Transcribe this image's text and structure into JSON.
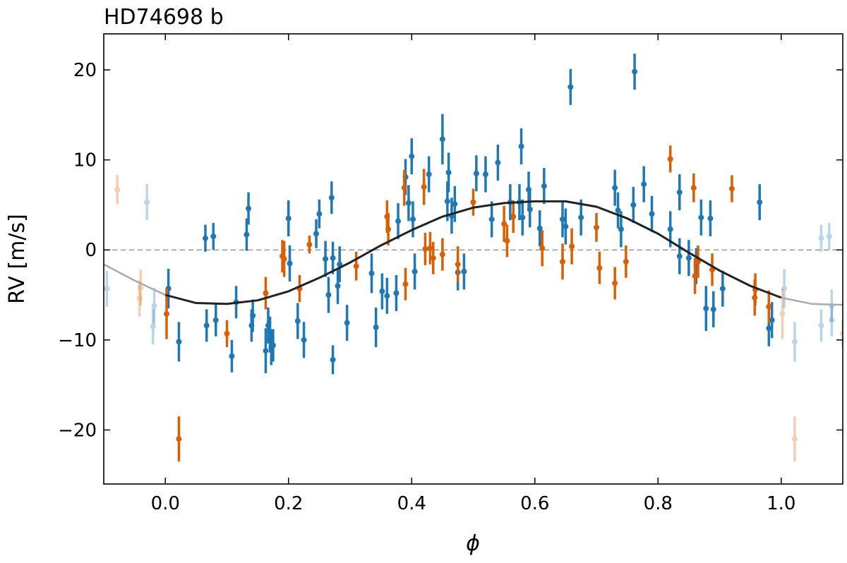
{
  "chart_data": {
    "type": "scatter",
    "title": "HD74698 b",
    "xlabel": "ϕ",
    "ylabel": "RV [m/s]",
    "xlim": [
      -0.1,
      1.1
    ],
    "ylim": [
      -26,
      24
    ],
    "x_ticks": [
      0.0,
      0.2,
      0.4,
      0.6,
      0.8,
      1.0
    ],
    "x_tick_labels": [
      "0.0",
      "0.2",
      "0.4",
      "0.6",
      "0.8",
      "1.0"
    ],
    "y_ticks": [
      20,
      10,
      0,
      -10,
      -20
    ],
    "y_tick_labels": [
      "20",
      "10",
      "0",
      "−10",
      "−20"
    ],
    "grid": false,
    "reference_line": {
      "y": 0,
      "style": "dashed",
      "color": "#999999"
    },
    "model_curve": {
      "x": [
        -0.1,
        -0.05,
        0.0,
        0.05,
        0.1,
        0.15,
        0.2,
        0.25,
        0.3,
        0.35,
        0.4,
        0.45,
        0.5,
        0.55,
        0.6,
        0.65,
        0.7,
        0.75,
        0.8,
        0.85,
        0.9,
        0.95,
        1.0,
        1.05,
        1.1
      ],
      "y": [
        -1.6,
        -3.4,
        -5.0,
        -5.9,
        -6.0,
        -5.6,
        -4.6,
        -3.1,
        -1.4,
        0.5,
        2.2,
        3.7,
        4.7,
        5.2,
        5.4,
        5.4,
        4.8,
        3.5,
        1.8,
        -0.3,
        -2.3,
        -4.0,
        -5.3,
        -6.0,
        -6.1
      ],
      "color": "#222222",
      "faded_color": "#aaaaaa",
      "main_range": [
        0.0,
        1.0
      ]
    },
    "faded_range": [
      0.0,
      1.0
    ],
    "series": [
      {
        "color": "#1f77b4",
        "points": [
          {
            "x": -0.095,
            "y": -4.3,
            "e": 2.0
          },
          {
            "x": -0.03,
            "y": 5.3,
            "e": 2.0
          },
          {
            "x": -0.02,
            "y": -8.5,
            "e": 2.0
          },
          {
            "x": -0.018,
            "y": -6.2,
            "e": 2.0
          },
          {
            "x": 0.005,
            "y": -4.3,
            "e": 2.2
          },
          {
            "x": 0.022,
            "y": -10.2,
            "e": 2.2
          },
          {
            "x": 0.065,
            "y": 1.3,
            "e": 1.5
          },
          {
            "x": 0.067,
            "y": -8.4,
            "e": 1.8
          },
          {
            "x": 0.078,
            "y": 1.5,
            "e": 1.5
          },
          {
            "x": 0.082,
            "y": -7.8,
            "e": 1.8
          },
          {
            "x": 0.108,
            "y": -11.8,
            "e": 1.8
          },
          {
            "x": 0.115,
            "y": -5.8,
            "e": 1.8
          },
          {
            "x": 0.132,
            "y": 1.7,
            "e": 1.8
          },
          {
            "x": 0.135,
            "y": 4.6,
            "e": 1.8
          },
          {
            "x": 0.14,
            "y": -8.4,
            "e": 1.8
          },
          {
            "x": 0.142,
            "y": -7.3,
            "e": 1.8
          },
          {
            "x": 0.163,
            "y": -11.2,
            "e": 2.5
          },
          {
            "x": 0.167,
            "y": -8.4,
            "e": 2.0
          },
          {
            "x": 0.17,
            "y": -9.4,
            "e": 2.0
          },
          {
            "x": 0.172,
            "y": -10.8,
            "e": 2.0
          },
          {
            "x": 0.175,
            "y": -10.6,
            "e": 1.8
          },
          {
            "x": 0.2,
            "y": 3.5,
            "e": 2.0
          },
          {
            "x": 0.202,
            "y": -1.5,
            "e": 2.0
          },
          {
            "x": 0.215,
            "y": -7.9,
            "e": 2.0
          },
          {
            "x": 0.225,
            "y": -10.0,
            "e": 2.0
          },
          {
            "x": 0.245,
            "y": 1.8,
            "e": 1.6
          },
          {
            "x": 0.25,
            "y": 4.0,
            "e": 1.6
          },
          {
            "x": 0.26,
            "y": -1.0,
            "e": 2.0
          },
          {
            "x": 0.265,
            "y": -5.0,
            "e": 2.0
          },
          {
            "x": 0.27,
            "y": 5.8,
            "e": 1.8
          },
          {
            "x": 0.272,
            "y": -0.9,
            "e": 1.8
          },
          {
            "x": 0.272,
            "y": -12.2,
            "e": 1.6
          },
          {
            "x": 0.28,
            "y": -4.0,
            "e": 2.0
          },
          {
            "x": 0.283,
            "y": -1.6,
            "e": 2.0
          },
          {
            "x": 0.295,
            "y": -8.1,
            "e": 2.0
          },
          {
            "x": 0.335,
            "y": -2.6,
            "e": 2.2
          },
          {
            "x": 0.342,
            "y": -8.6,
            "e": 2.2
          },
          {
            "x": 0.352,
            "y": -4.6,
            "e": 2.0
          },
          {
            "x": 0.36,
            "y": -5.1,
            "e": 2.0
          },
          {
            "x": 0.375,
            "y": -4.8,
            "e": 2.0
          },
          {
            "x": 0.378,
            "y": 3.2,
            "e": 2.0
          },
          {
            "x": 0.39,
            "y": 8.1,
            "e": 2.0
          },
          {
            "x": 0.395,
            "y": 5.2,
            "e": 2.0
          },
          {
            "x": 0.4,
            "y": 10.4,
            "e": 2.0
          },
          {
            "x": 0.402,
            "y": 3.4,
            "e": 2.0
          },
          {
            "x": 0.405,
            "y": -2.4,
            "e": 2.0
          },
          {
            "x": 0.428,
            "y": 8.4,
            "e": 2.0
          },
          {
            "x": 0.45,
            "y": 12.3,
            "e": 2.8
          },
          {
            "x": 0.458,
            "y": 5.4,
            "e": 2.2
          },
          {
            "x": 0.46,
            "y": 8.6,
            "e": 2.2
          },
          {
            "x": 0.465,
            "y": 3.8,
            "e": 2.0
          },
          {
            "x": 0.47,
            "y": 5.1,
            "e": 2.0
          },
          {
            "x": 0.475,
            "y": -2.5,
            "e": 2.0
          },
          {
            "x": 0.485,
            "y": -2.4,
            "e": 2.0
          },
          {
            "x": 0.505,
            "y": 8.5,
            "e": 2.0
          },
          {
            "x": 0.52,
            "y": 8.4,
            "e": 2.0
          },
          {
            "x": 0.53,
            "y": 3.4,
            "e": 2.0
          },
          {
            "x": 0.54,
            "y": 9.7,
            "e": 2.0
          },
          {
            "x": 0.56,
            "y": 5.3,
            "e": 2.0
          },
          {
            "x": 0.575,
            "y": 5.3,
            "e": 2.0
          },
          {
            "x": 0.578,
            "y": 11.5,
            "e": 2.0
          },
          {
            "x": 0.58,
            "y": 3.6,
            "e": 2.0
          },
          {
            "x": 0.59,
            "y": 6.7,
            "e": 2.0
          },
          {
            "x": 0.592,
            "y": 4.5,
            "e": 2.0
          },
          {
            "x": 0.608,
            "y": 2.4,
            "e": 2.0
          },
          {
            "x": 0.615,
            "y": 7.1,
            "e": 2.0
          },
          {
            "x": 0.645,
            "y": 3.4,
            "e": 2.0
          },
          {
            "x": 0.65,
            "y": 2.6,
            "e": 2.0
          },
          {
            "x": 0.658,
            "y": 18.1,
            "e": 2.0
          },
          {
            "x": 0.675,
            "y": 3.6,
            "e": 2.0
          },
          {
            "x": 0.73,
            "y": 6.9,
            "e": 2.0
          },
          {
            "x": 0.735,
            "y": 4.4,
            "e": 2.0
          },
          {
            "x": 0.74,
            "y": 2.3,
            "e": 2.0
          },
          {
            "x": 0.76,
            "y": 5.0,
            "e": 2.0
          },
          {
            "x": 0.762,
            "y": 19.8,
            "e": 2.0
          },
          {
            "x": 0.777,
            "y": 7.3,
            "e": 2.0
          },
          {
            "x": 0.79,
            "y": 4.0,
            "e": 2.0
          },
          {
            "x": 0.82,
            "y": 2.3,
            "e": 2.0
          },
          {
            "x": 0.835,
            "y": 6.4,
            "e": 2.0
          },
          {
            "x": 0.835,
            "y": -0.7,
            "e": 2.0
          },
          {
            "x": 0.85,
            "y": -0.9,
            "e": 2.0
          },
          {
            "x": 0.862,
            "y": -1.8,
            "e": 2.0
          },
          {
            "x": 0.87,
            "y": 3.6,
            "e": 2.0
          },
          {
            "x": 0.878,
            "y": -6.5,
            "e": 2.5
          },
          {
            "x": 0.885,
            "y": 3.5,
            "e": 2.0
          },
          {
            "x": 0.89,
            "y": -6.6,
            "e": 2.0
          },
          {
            "x": 0.905,
            "y": -4.3,
            "e": 2.0
          },
          {
            "x": 0.965,
            "y": 5.3,
            "e": 2.0
          },
          {
            "x": 0.98,
            "y": -8.7,
            "e": 2.0
          },
          {
            "x": 0.985,
            "y": -7.8,
            "e": 2.0
          },
          {
            "x": 1.005,
            "y": -4.3,
            "e": 2.2
          },
          {
            "x": 1.022,
            "y": -10.2,
            "e": 2.2
          },
          {
            "x": 1.065,
            "y": -8.4,
            "e": 1.8
          },
          {
            "x": 1.065,
            "y": 1.3,
            "e": 1.5
          },
          {
            "x": 1.078,
            "y": 1.5,
            "e": 1.5
          },
          {
            "x": 1.082,
            "y": -7.8,
            "e": 1.8
          },
          {
            "x": 1.082,
            "y": -6.2,
            "e": 1.8
          }
        ]
      },
      {
        "color": "#d95f02",
        "points": [
          {
            "x": -0.078,
            "y": 6.7,
            "e": 1.6
          },
          {
            "x": -0.04,
            "y": -4.2,
            "e": 2.0
          },
          {
            "x": -0.042,
            "y": -5.4,
            "e": 2.0
          },
          {
            "x": 0.002,
            "y": -7.1,
            "e": 2.8
          },
          {
            "x": 0.022,
            "y": -21.0,
            "e": 2.5
          },
          {
            "x": 0.1,
            "y": -9.3,
            "e": 1.5
          },
          {
            "x": 0.163,
            "y": -4.8,
            "e": 1.8
          },
          {
            "x": 0.19,
            "y": -0.7,
            "e": 1.8
          },
          {
            "x": 0.193,
            "y": -1.0,
            "e": 2.0
          },
          {
            "x": 0.218,
            "y": -4.3,
            "e": 1.5
          },
          {
            "x": 0.234,
            "y": 0.6,
            "e": 1.0
          },
          {
            "x": 0.31,
            "y": -1.8,
            "e": 1.6
          },
          {
            "x": 0.36,
            "y": 3.7,
            "e": 1.8
          },
          {
            "x": 0.362,
            "y": 2.3,
            "e": 1.8
          },
          {
            "x": 0.388,
            "y": 6.9,
            "e": 2.0
          },
          {
            "x": 0.39,
            "y": -3.8,
            "e": 1.8
          },
          {
            "x": 0.42,
            "y": 7.0,
            "e": 2.0
          },
          {
            "x": 0.422,
            "y": 0.1,
            "e": 1.8
          },
          {
            "x": 0.435,
            "y": -0.9,
            "e": 1.8
          },
          {
            "x": 0.43,
            "y": 0.2,
            "e": 1.8
          },
          {
            "x": 0.45,
            "y": -0.5,
            "e": 1.8
          },
          {
            "x": 0.475,
            "y": -1.6,
            "e": 2.0
          },
          {
            "x": 0.5,
            "y": 5.3,
            "e": 1.5
          },
          {
            "x": 0.55,
            "y": 2.9,
            "e": 2.0
          },
          {
            "x": 0.555,
            "y": 1.0,
            "e": 1.8
          },
          {
            "x": 0.565,
            "y": 3.7,
            "e": 1.8
          },
          {
            "x": 0.612,
            "y": 0.2,
            "e": 2.0
          },
          {
            "x": 0.645,
            "y": -1.3,
            "e": 2.0
          },
          {
            "x": 0.66,
            "y": 0.4,
            "e": 2.0
          },
          {
            "x": 0.7,
            "y": 2.5,
            "e": 1.6
          },
          {
            "x": 0.705,
            "y": -2.0,
            "e": 1.8
          },
          {
            "x": 0.73,
            "y": -3.7,
            "e": 1.8
          },
          {
            "x": 0.748,
            "y": -1.3,
            "e": 1.8
          },
          {
            "x": 0.82,
            "y": 10.1,
            "e": 1.5
          },
          {
            "x": 0.858,
            "y": 6.9,
            "e": 1.6
          },
          {
            "x": 0.86,
            "y": -2.9,
            "e": 2.0
          },
          {
            "x": 0.865,
            "y": -1.3,
            "e": 1.8
          },
          {
            "x": 0.888,
            "y": -2.2,
            "e": 1.8
          },
          {
            "x": 0.92,
            "y": 6.8,
            "e": 1.5
          },
          {
            "x": 0.957,
            "y": -5.3,
            "e": 2.0
          },
          {
            "x": 0.958,
            "y": -4.4,
            "e": 1.8
          },
          {
            "x": 0.98,
            "y": -6.3,
            "e": 1.8
          },
          {
            "x": 1.002,
            "y": -7.1,
            "e": 2.8
          },
          {
            "x": 1.022,
            "y": -21.0,
            "e": 2.5
          },
          {
            "x": 1.1,
            "y": -9.3,
            "e": 1.5
          }
        ]
      }
    ]
  }
}
